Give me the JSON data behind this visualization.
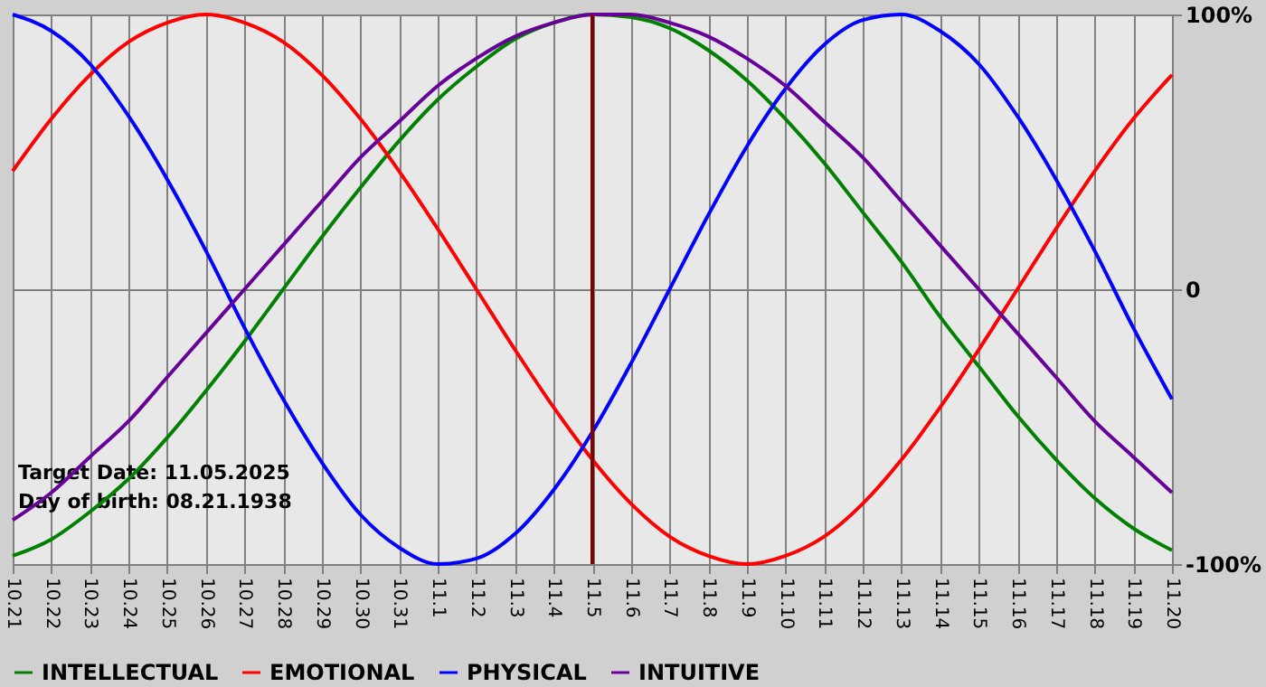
{
  "chart_data": {
    "type": "line",
    "categories": [
      "10.21",
      "10.22",
      "10.23",
      "10.24",
      "10.25",
      "10.26",
      "10.27",
      "10.28",
      "10.29",
      "10.30",
      "10.31",
      "11.1",
      "11.2",
      "11.3",
      "11.4",
      "11.5",
      "11.6",
      "11.7",
      "11.8",
      "11.9",
      "11.10",
      "11.11",
      "11.12",
      "11.13",
      "11.14",
      "11.15",
      "11.16",
      "11.17",
      "11.18",
      "11.19",
      "11.20"
    ],
    "series": [
      {
        "name": "INTELLECTUAL",
        "color": "#008000",
        "values": [
          -97,
          -91,
          -81,
          -69,
          -54,
          -37,
          -19,
          0,
          19,
          37,
          54,
          69,
          81,
          91,
          97,
          100,
          99,
          95,
          87,
          76,
          62,
          46,
          28,
          10,
          -10,
          -28,
          -46,
          -62,
          -76,
          -87,
          -95
        ]
      },
      {
        "name": "EMOTIONAL",
        "color": "#ff0000",
        "values": [
          43,
          62,
          78,
          90,
          97,
          100,
          97,
          90,
          78,
          62,
          43,
          22,
          0,
          -22,
          -43,
          -62,
          -78,
          -90,
          -97,
          -100,
          -97,
          -90,
          -78,
          -62,
          -43,
          -22,
          0,
          22,
          43,
          62,
          78
        ]
      },
      {
        "name": "PHYSICAL",
        "color": "#0000ff",
        "values": [
          100,
          94,
          82,
          63,
          40,
          14,
          -14,
          -40,
          -63,
          -82,
          -94,
          -100,
          -98,
          -89,
          -73,
          -52,
          -27,
          0,
          27,
          52,
          73,
          89,
          98,
          100,
          94,
          82,
          63,
          40,
          14,
          -14,
          -40
        ]
      },
      {
        "name": "INTUITIVE",
        "color": "#660099",
        "values": [
          -84,
          -74,
          -61,
          -48,
          -32,
          -16,
          0,
          16,
          32,
          48,
          61,
          74,
          84,
          92,
          97,
          100,
          100,
          97,
          92,
          84,
          74,
          61,
          48,
          32,
          16,
          0,
          -16,
          -32,
          -48,
          -61,
          -74
        ]
      }
    ],
    "ylim": [
      -100,
      100
    ],
    "yticks": [
      {
        "value": 100,
        "label": "100%"
      },
      0,
      {
        "value": -100,
        "label": "-100%"
      }
    ],
    "ref_lines": [
      {
        "axis": "x",
        "value": "11.5",
        "color": "#800000"
      }
    ],
    "annotations": [
      "Target Date: 11.05.2025",
      "Day of birth: 08.21.1938"
    ],
    "grid": true,
    "legend": "bottom",
    "line_style": "solid",
    "marker": "none"
  }
}
